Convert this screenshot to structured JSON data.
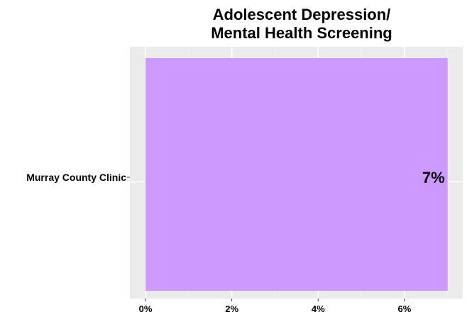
{
  "chart_data": {
    "type": "bar",
    "orientation": "horizontal",
    "title": [
      "Adolescent Depression/",
      "Mental Health Screening"
    ],
    "categories": [
      "Murray County Clinic"
    ],
    "values": [
      7
    ],
    "data_labels": [
      "7%"
    ],
    "xlim": [
      0,
      7.35
    ],
    "xticks": [
      0,
      2,
      4,
      6
    ],
    "xtick_labels": [
      "0%",
      "2%",
      "4%",
      "6%"
    ],
    "grid": true,
    "legend": "none",
    "colors": {
      "bar": "#cc99ff",
      "panel_background": "#ebebeb",
      "grid_major": "#ffffff",
      "grid_minor": "#f3f3f3"
    }
  }
}
